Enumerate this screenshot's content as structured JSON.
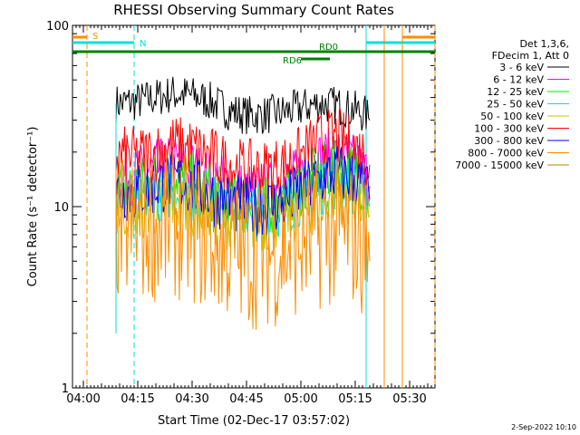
{
  "chart_data": {
    "type": "line",
    "title": "RHESSI Observing Summary Count Rates",
    "xlabel": "Start Time (02-Dec-17 03:57:02)",
    "ylabel": "Count Rate (s⁻¹ detector⁻¹)",
    "x_unit": "minutes UT",
    "xlim": [
      "03:57",
      "05:37"
    ],
    "x_ticks": [
      "04:00",
      "04:15",
      "04:30",
      "04:45",
      "05:00",
      "05:15",
      "05:30"
    ],
    "ylim": [
      1,
      100
    ],
    "yscale": "log",
    "y_ticks": [
      "1",
      "10",
      "100"
    ],
    "legend_position": "right",
    "legend_header": [
      "Det 1,3,6,",
      "FDecim 1, Att 0"
    ],
    "footer": "2-Sep-2022 10:10",
    "series": [
      {
        "name": "3 - 6 keV",
        "color": "#000000",
        "x": [
          "04:09",
          "04:15",
          "04:20",
          "04:25",
          "04:30",
          "04:35",
          "04:40",
          "04:45",
          "04:50",
          "04:55",
          "05:00",
          "05:05",
          "05:10",
          "05:15",
          "05:18",
          "05:19"
        ],
        "values": [
          37,
          38,
          40,
          42,
          41,
          38,
          34,
          32,
          32,
          33,
          35,
          37,
          36,
          34,
          32,
          30
        ]
      },
      {
        "name": "6 - 12 keV",
        "color": "#ff00ff",
        "x": [
          "04:09",
          "04:15",
          "04:20",
          "04:25",
          "04:30",
          "04:35",
          "04:40",
          "04:45",
          "04:50",
          "04:55",
          "05:00",
          "05:05",
          "05:10",
          "05:15",
          "05:18",
          "05:19"
        ],
        "values": [
          15,
          15,
          16,
          17,
          16,
          14,
          13,
          12,
          12,
          13,
          15,
          18,
          19,
          17,
          15,
          13
        ]
      },
      {
        "name": "12 - 25 keV",
        "color": "#00ee00",
        "x": [
          "04:09",
          "04:15",
          "04:20",
          "04:25",
          "04:30",
          "04:35",
          "04:40",
          "04:45",
          "04:50",
          "04:55",
          "05:00",
          "05:05",
          "05:10",
          "05:15",
          "05:18",
          "05:19"
        ],
        "values": [
          13,
          13,
          14,
          15,
          14,
          12,
          11,
          10.5,
          10,
          11,
          13,
          15,
          17,
          15,
          13,
          11
        ]
      },
      {
        "name": "25 - 50 keV",
        "color": "#00e0e0",
        "x": [
          "04:09",
          "04:15",
          "04:20",
          "04:25",
          "04:30",
          "04:35",
          "04:40",
          "04:45",
          "04:50",
          "04:55",
          "05:00",
          "05:05",
          "05:10",
          "05:15",
          "05:18",
          "05:19"
        ],
        "values": [
          11,
          11,
          12,
          12.5,
          12,
          10.5,
          10,
          9.5,
          9.5,
          10,
          11.5,
          13,
          14,
          13,
          12,
          10
        ]
      },
      {
        "name": "50 - 100 keV",
        "color": "#c8c800",
        "x": [
          "04:09",
          "04:15",
          "04:20",
          "04:25",
          "04:30",
          "04:35",
          "04:40",
          "04:45",
          "04:50",
          "04:55",
          "05:00",
          "05:05",
          "05:10",
          "05:15",
          "05:18",
          "05:19"
        ],
        "values": [
          9.5,
          9.5,
          10,
          10.5,
          10,
          9,
          8.5,
          8.2,
          8.2,
          8.5,
          9.5,
          11,
          12,
          11,
          10,
          9
        ]
      },
      {
        "name": "100 - 300 keV",
        "color": "#ff0000",
        "x": [
          "04:09",
          "04:15",
          "04:20",
          "04:25",
          "04:30",
          "04:35",
          "04:40",
          "04:45",
          "04:50",
          "04:55",
          "05:00",
          "05:05",
          "05:10",
          "05:15",
          "05:18",
          "05:19"
        ],
        "values": [
          19,
          19,
          20,
          22,
          21,
          19,
          17,
          16,
          16,
          17,
          19,
          23,
          24,
          21,
          19,
          17
        ]
      },
      {
        "name": "300 - 800 keV",
        "color": "#0000ff",
        "x": [
          "04:09",
          "04:15",
          "04:20",
          "04:25",
          "04:30",
          "04:35",
          "04:40",
          "04:45",
          "04:50",
          "04:55",
          "05:00",
          "05:05",
          "05:10",
          "05:15",
          "05:18",
          "05:19"
        ],
        "values": [
          12,
          12,
          13,
          14,
          13,
          11.5,
          10.5,
          10,
          10,
          10.5,
          12,
          14,
          15.5,
          14,
          12.5,
          11
        ]
      },
      {
        "name": "800 - 7000 keV",
        "color": "#ff8c00",
        "x": [
          "04:09",
          "04:15",
          "04:20",
          "04:25",
          "04:30",
          "04:35",
          "04:40",
          "04:45",
          "04:50",
          "04:55",
          "05:00",
          "05:05",
          "05:10",
          "05:15",
          "05:18",
          "05:19"
        ],
        "values": [
          7.5,
          7.5,
          7.8,
          8,
          7.5,
          6.5,
          6,
          5.5,
          5.5,
          5.8,
          6.3,
          7,
          7.2,
          7,
          6,
          5
        ]
      },
      {
        "name": "7000 - 15000 keV",
        "color": "#b8860b",
        "x": [],
        "values": []
      }
    ],
    "markers": [
      {
        "label": "S",
        "color": "#ff8c00",
        "x": "04:01",
        "bar_from": "03:57",
        "bar_to": "04:01",
        "vline": "04:01"
      },
      {
        "label": "N",
        "color": "#00e0e0",
        "x": "04:14",
        "bar_from": "03:57",
        "bar_to": "04:14",
        "vline": "04:14"
      },
      {
        "label": "",
        "color": "#00e0e0",
        "x": "05:18",
        "bar_from": "05:18",
        "bar_to": "05:37",
        "vline": "05:18"
      },
      {
        "label": "",
        "color": "#ff8c00",
        "x": "05:28",
        "bar_from": "05:28",
        "bar_to": "05:37",
        "vline": "05:28"
      },
      {
        "label": "",
        "color": "#ff8c00",
        "x": "05:37",
        "bar_from": "",
        "bar_to": "",
        "vline": "05:37"
      },
      {
        "label": "",
        "color": "#ff8c00",
        "x": "05:23",
        "bar_from": "",
        "bar_to": "",
        "vline": "05:23"
      }
    ],
    "decim_bars": [
      {
        "label": "RD0",
        "color": "#008000",
        "from": "03:57",
        "to": "05:37",
        "level": "upper"
      },
      {
        "label": "RD6",
        "color": "#008000",
        "from": "05:00",
        "to": "05:08",
        "level": "lower"
      }
    ]
  }
}
